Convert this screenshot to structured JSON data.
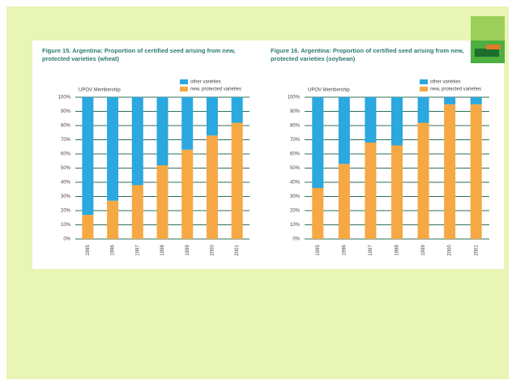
{
  "chart_data": [
    {
      "type": "bar",
      "stacked": true,
      "title": "Figure 15. Argentina: Proportion of certified seed arising from new, protected varieties (wheat)",
      "annotation": "UPOV Membership",
      "categories": [
        "1995",
        "1996",
        "1997",
        "1998",
        "1999",
        "2000",
        "2001"
      ],
      "series": [
        {
          "name": "new, protected varieties",
          "color": "#f5a843",
          "values": [
            17,
            27,
            38,
            52,
            63,
            73,
            82
          ]
        },
        {
          "name": "other varieties",
          "color": "#2aa8df",
          "values": [
            83,
            73,
            62,
            48,
            37,
            27,
            18
          ]
        }
      ],
      "ylim": [
        0,
        100
      ],
      "yticks": [
        {
          "value": 0,
          "label": "0%"
        },
        {
          "value": 10,
          "label": "10%"
        },
        {
          "value": 20,
          "label": "20%"
        },
        {
          "value": 30,
          "label": "30%"
        },
        {
          "value": 40,
          "label": "40%"
        },
        {
          "value": 50,
          "label": "50%"
        },
        {
          "value": 60,
          "label": "60%"
        },
        {
          "value": 70,
          "label": "70%"
        },
        {
          "value": 80,
          "label": "80%"
        },
        {
          "value": 90,
          "label": "90%"
        },
        {
          "value": 100,
          "label": "100%"
        }
      ],
      "grid": true
    },
    {
      "type": "bar",
      "stacked": true,
      "title": "Figure 16. Argentina: Proportion of certified seed arising from new, protected varieties (soybean)",
      "annotation": "UPOV Membership",
      "categories": [
        "1995",
        "1996",
        "1997",
        "1998",
        "1999",
        "2000",
        "2001"
      ],
      "series": [
        {
          "name": "new, protected varieties",
          "color": "#f5a843",
          "values": [
            36,
            53,
            68,
            66,
            82,
            95,
            95
          ]
        },
        {
          "name": "other varieties",
          "color": "#2aa8df",
          "values": [
            64,
            47,
            32,
            34,
            18,
            5,
            5
          ]
        }
      ],
      "ylim": [
        0,
        100
      ],
      "yticks": [
        {
          "value": 0,
          "label": "0%"
        },
        {
          "value": 10,
          "label": "10%"
        },
        {
          "value": 20,
          "label": "20%"
        },
        {
          "value": 30,
          "label": "30%"
        },
        {
          "value": 40,
          "label": "40%"
        },
        {
          "value": 50,
          "label": "50%"
        },
        {
          "value": 60,
          "label": "60%"
        },
        {
          "value": 70,
          "label": "70%"
        },
        {
          "value": 80,
          "label": "80%"
        },
        {
          "value": 90,
          "label": "90%"
        },
        {
          "value": 100,
          "label": "100%"
        }
      ],
      "grid": true
    }
  ]
}
